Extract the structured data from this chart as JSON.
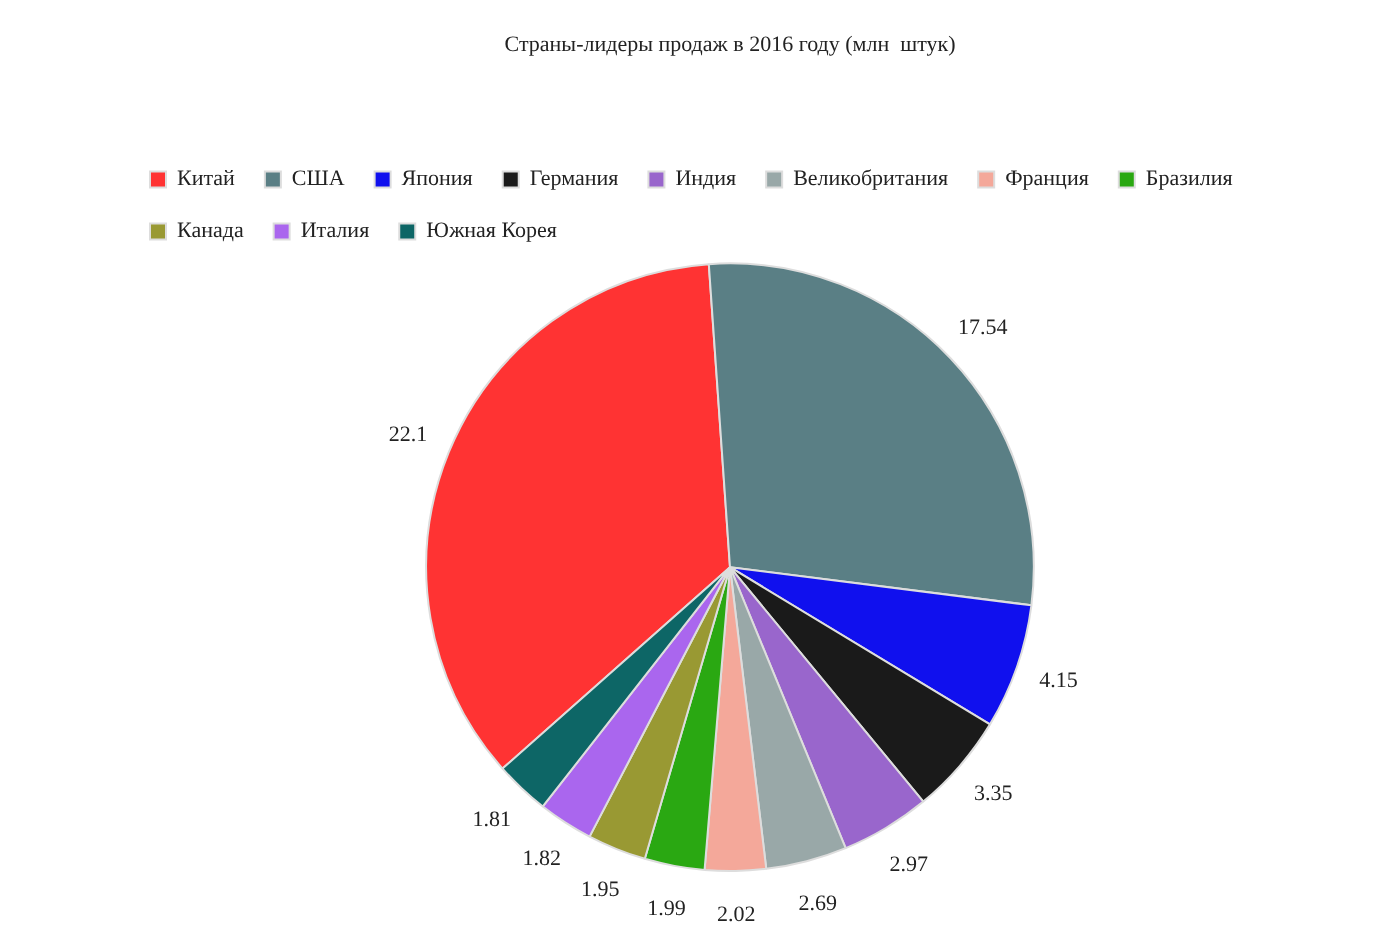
{
  "chart_data": {
    "type": "pie",
    "title": "Страны-лидеры продаж в 2016 году (млн  штук)",
    "categories": [
      "Китай",
      "США",
      "Япония",
      "Германия",
      "Индия",
      "Великобритания",
      "Франция",
      "Бразилия",
      "Канада",
      "Италия",
      "Южная Корея"
    ],
    "values": [
      22.1,
      17.54,
      4.15,
      3.35,
      2.97,
      2.69,
      2.02,
      1.99,
      1.95,
      1.82,
      1.81
    ],
    "colors": [
      "#ff3333",
      "#5a7f85",
      "#1010ee",
      "#1a1a1a",
      "#9966cc",
      "#99a8a8",
      "#f4a89a",
      "#2aa812",
      "#999933",
      "#aa66ee",
      "#0d6666"
    ],
    "legend": "top",
    "data_labels": true
  }
}
